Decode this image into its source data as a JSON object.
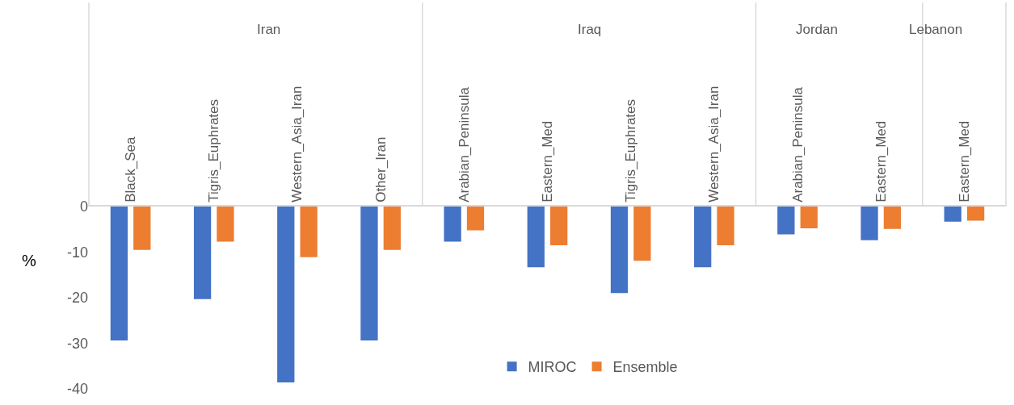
{
  "chart_data": [
    {
      "type": "bar",
      "title": "Iran",
      "ylabel": "%",
      "categories": [
        "Black_Sea",
        "Tigris_Euphrates",
        "Western_Asia_Iran",
        "Other_Iran"
      ],
      "series": [
        {
          "color": "#4472c4",
          "values": [
            -29.4,
            -20.3,
            -38.6,
            -29.4
          ]
        },
        {
          "color": "#ed7d31",
          "values": [
            -9.5,
            -7.7,
            -11.1,
            -9.5
          ]
        }
      ],
      "ylim": [
        -40,
        0
      ],
      "yticks": [
        -40,
        -30,
        -20,
        -10,
        0
      ]
    },
    {
      "type": "bar",
      "title": "Iraq",
      "categories": [
        "Arabian_Peninsula",
        "Eastern_Med",
        "Tigris_Euphrates",
        "Western_Asia_Iran"
      ],
      "series": [
        {
          "name": "MIROC",
          "color": "#4472c4",
          "values": [
            -7.7,
            -13.3,
            -19.0,
            -13.3
          ]
        },
        {
          "name": "Ensemble",
          "color": "#ed7d31",
          "values": [
            -5.2,
            -8.5,
            -11.9,
            -8.5
          ]
        }
      ],
      "ylim": [
        -40,
        0
      ],
      "yticks": [
        -40,
        -30,
        -20,
        -10,
        0
      ],
      "tick_labels": "x",
      "legend": "bottom"
    },
    {
      "type": "bar",
      "title": "Jordan",
      "categories": [
        "Arabian_Peninsula",
        "Eastern_Med"
      ],
      "series": [
        {
          "color": "#4472c4",
          "values": [
            -6.1,
            -7.4
          ]
        },
        {
          "color": "#ed7d31",
          "values": [
            -4.8,
            -4.9
          ]
        }
      ],
      "ylim": [
        -40,
        0
      ],
      "yticks": [
        -40,
        -30,
        -20,
        -10,
        0
      ],
      "tick_labels": "x"
    },
    {
      "type": "bar",
      "title": "Lebanon",
      "categories": [
        "Eastern_Med"
      ],
      "series": [
        {
          "color": "#4472c4",
          "values": [
            -3.3
          ]
        },
        {
          "color": "#ed7d31",
          "values": [
            -3.1
          ]
        }
      ],
      "ylim": [
        -40,
        0
      ],
      "yticks": [
        -40,
        -30,
        -20,
        -10,
        0
      ],
      "tick_labels": "x"
    }
  ]
}
